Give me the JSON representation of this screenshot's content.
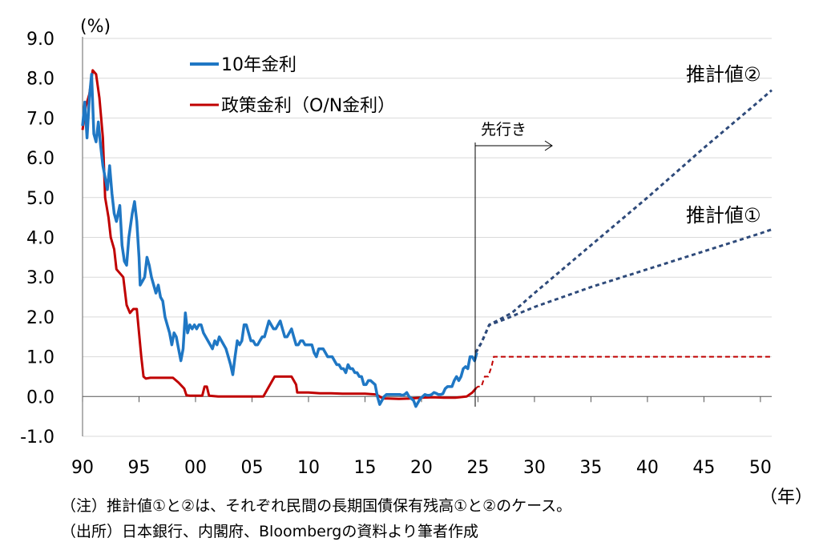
{
  "chart_data": {
    "type": "line",
    "unit_label": "(%)",
    "year_label": "（年）",
    "ylim": [
      -1.0,
      9.0
    ],
    "xlim": [
      1990,
      2051
    ],
    "y_ticks": [
      "9.0",
      "8.0",
      "7.0",
      "6.0",
      "5.0",
      "4.0",
      "3.0",
      "2.0",
      "1.0",
      "0.0",
      "-1.0"
    ],
    "x_ticks": [
      "90",
      "95",
      "00",
      "05",
      "10",
      "15",
      "20",
      "25",
      "30",
      "35",
      "40",
      "45",
      "50"
    ],
    "grid": "horizontal",
    "legend_position": "top-left",
    "colors": {
      "jgb10": "#1f77c4",
      "policy": "#c00000",
      "est": "#2e4a7a"
    },
    "series": [
      {
        "name": "10年金利",
        "key": "jgb10",
        "points": [
          [
            1990.0,
            6.8
          ],
          [
            1990.2,
            7.4
          ],
          [
            1990.4,
            6.5
          ],
          [
            1990.6,
            7.5
          ],
          [
            1990.8,
            8.1
          ],
          [
            1991.0,
            6.6
          ],
          [
            1991.2,
            6.4
          ],
          [
            1991.4,
            6.9
          ],
          [
            1991.6,
            6.3
          ],
          [
            1991.8,
            5.8
          ],
          [
            1992.0,
            5.5
          ],
          [
            1992.2,
            5.2
          ],
          [
            1992.4,
            5.8
          ],
          [
            1992.6,
            5.1
          ],
          [
            1992.8,
            4.6
          ],
          [
            1993.0,
            4.4
          ],
          [
            1993.3,
            4.8
          ],
          [
            1993.5,
            3.8
          ],
          [
            1993.7,
            3.4
          ],
          [
            1993.9,
            3.3
          ],
          [
            1994.1,
            4.0
          ],
          [
            1994.4,
            4.6
          ],
          [
            1994.6,
            4.9
          ],
          [
            1994.8,
            4.4
          ],
          [
            1995.0,
            3.5
          ],
          [
            1995.1,
            2.8
          ],
          [
            1995.3,
            2.9
          ],
          [
            1995.5,
            3.0
          ],
          [
            1995.7,
            3.5
          ],
          [
            1995.9,
            3.3
          ],
          [
            1996.1,
            3.0
          ],
          [
            1996.3,
            2.8
          ],
          [
            1996.5,
            2.6
          ],
          [
            1996.7,
            2.8
          ],
          [
            1996.9,
            2.5
          ],
          [
            1997.1,
            2.4
          ],
          [
            1997.3,
            2.0
          ],
          [
            1997.5,
            1.8
          ],
          [
            1997.7,
            1.6
          ],
          [
            1997.9,
            1.3
          ],
          [
            1998.1,
            1.6
          ],
          [
            1998.3,
            1.5
          ],
          [
            1998.5,
            1.2
          ],
          [
            1998.7,
            0.9
          ],
          [
            1998.9,
            1.2
          ],
          [
            1999.1,
            2.1
          ],
          [
            1999.3,
            1.6
          ],
          [
            1999.5,
            1.8
          ],
          [
            1999.7,
            1.7
          ],
          [
            1999.9,
            1.8
          ],
          [
            2000.1,
            1.7
          ],
          [
            2000.3,
            1.8
          ],
          [
            2000.5,
            1.8
          ],
          [
            2000.7,
            1.6
          ],
          [
            2000.9,
            1.5
          ],
          [
            2001.1,
            1.4
          ],
          [
            2001.3,
            1.3
          ],
          [
            2001.5,
            1.2
          ],
          [
            2001.7,
            1.4
          ],
          [
            2001.9,
            1.3
          ],
          [
            2002.1,
            1.5
          ],
          [
            2002.3,
            1.4
          ],
          [
            2002.5,
            1.3
          ],
          [
            2002.7,
            1.2
          ],
          [
            2002.9,
            1.0
          ],
          [
            2003.1,
            0.8
          ],
          [
            2003.3,
            0.55
          ],
          [
            2003.5,
            1.0
          ],
          [
            2003.7,
            1.4
          ],
          [
            2003.9,
            1.3
          ],
          [
            2004.1,
            1.4
          ],
          [
            2004.3,
            1.8
          ],
          [
            2004.5,
            1.8
          ],
          [
            2004.7,
            1.6
          ],
          [
            2004.9,
            1.4
          ],
          [
            2005.1,
            1.4
          ],
          [
            2005.3,
            1.3
          ],
          [
            2005.5,
            1.3
          ],
          [
            2005.7,
            1.4
          ],
          [
            2005.9,
            1.5
          ],
          [
            2006.1,
            1.5
          ],
          [
            2006.3,
            1.7
          ],
          [
            2006.5,
            1.9
          ],
          [
            2006.7,
            1.8
          ],
          [
            2006.9,
            1.7
          ],
          [
            2007.1,
            1.7
          ],
          [
            2007.3,
            1.8
          ],
          [
            2007.5,
            1.9
          ],
          [
            2007.7,
            1.7
          ],
          [
            2007.9,
            1.5
          ],
          [
            2008.1,
            1.5
          ],
          [
            2008.3,
            1.6
          ],
          [
            2008.5,
            1.7
          ],
          [
            2008.7,
            1.5
          ],
          [
            2008.9,
            1.3
          ],
          [
            2009.1,
            1.3
          ],
          [
            2009.3,
            1.4
          ],
          [
            2009.5,
            1.4
          ],
          [
            2009.7,
            1.3
          ],
          [
            2009.9,
            1.3
          ],
          [
            2010.1,
            1.3
          ],
          [
            2010.3,
            1.3
          ],
          [
            2010.5,
            1.1
          ],
          [
            2010.7,
            1.0
          ],
          [
            2010.9,
            1.2
          ],
          [
            2011.1,
            1.2
          ],
          [
            2011.3,
            1.2
          ],
          [
            2011.5,
            1.1
          ],
          [
            2011.7,
            1.0
          ],
          [
            2011.9,
            1.0
          ],
          [
            2012.1,
            1.0
          ],
          [
            2012.3,
            0.9
          ],
          [
            2012.5,
            0.8
          ],
          [
            2012.7,
            0.8
          ],
          [
            2012.9,
            0.7
          ],
          [
            2013.1,
            0.7
          ],
          [
            2013.3,
            0.6
          ],
          [
            2013.5,
            0.8
          ],
          [
            2013.7,
            0.7
          ],
          [
            2013.9,
            0.7
          ],
          [
            2014.1,
            0.6
          ],
          [
            2014.3,
            0.6
          ],
          [
            2014.5,
            0.5
          ],
          [
            2014.7,
            0.5
          ],
          [
            2014.9,
            0.3
          ],
          [
            2015.1,
            0.3
          ],
          [
            2015.3,
            0.4
          ],
          [
            2015.5,
            0.4
          ],
          [
            2015.7,
            0.35
          ],
          [
            2015.9,
            0.3
          ],
          [
            2016.1,
            0.0
          ],
          [
            2016.3,
            -0.2
          ],
          [
            2016.5,
            -0.1
          ],
          [
            2016.7,
            0.0
          ],
          [
            2016.9,
            0.05
          ],
          [
            2017.1,
            0.05
          ],
          [
            2017.3,
            0.05
          ],
          [
            2017.5,
            0.05
          ],
          [
            2017.7,
            0.05
          ],
          [
            2017.9,
            0.05
          ],
          [
            2018.1,
            0.05
          ],
          [
            2018.3,
            0.03
          ],
          [
            2018.5,
            0.05
          ],
          [
            2018.7,
            0.1
          ],
          [
            2018.9,
            0.0
          ],
          [
            2019.1,
            -0.05
          ],
          [
            2019.3,
            -0.1
          ],
          [
            2019.5,
            -0.25
          ],
          [
            2019.7,
            -0.15
          ],
          [
            2019.9,
            -0.05
          ],
          [
            2020.1,
            0.0
          ],
          [
            2020.3,
            0.05
          ],
          [
            2020.5,
            0.03
          ],
          [
            2020.7,
            0.03
          ],
          [
            2020.9,
            0.05
          ],
          [
            2021.1,
            0.1
          ],
          [
            2021.3,
            0.08
          ],
          [
            2021.5,
            0.05
          ],
          [
            2021.7,
            0.05
          ],
          [
            2021.9,
            0.07
          ],
          [
            2022.1,
            0.2
          ],
          [
            2022.3,
            0.25
          ],
          [
            2022.5,
            0.25
          ],
          [
            2022.7,
            0.25
          ],
          [
            2022.9,
            0.4
          ],
          [
            2023.1,
            0.5
          ],
          [
            2023.3,
            0.4
          ],
          [
            2023.5,
            0.5
          ],
          [
            2023.7,
            0.7
          ],
          [
            2023.9,
            0.75
          ],
          [
            2024.1,
            0.7
          ],
          [
            2024.3,
            1.0
          ],
          [
            2024.5,
            1.0
          ],
          [
            2024.7,
            0.9
          ],
          [
            2024.9,
            1.1
          ]
        ]
      },
      {
        "name": "政策金利（O/N金利）",
        "key": "policy",
        "points": [
          [
            1990.0,
            6.7
          ],
          [
            1990.3,
            7.3
          ],
          [
            1990.6,
            7.6
          ],
          [
            1990.9,
            8.2
          ],
          [
            1991.2,
            8.1
          ],
          [
            1991.5,
            7.5
          ],
          [
            1991.8,
            6.5
          ],
          [
            1992.0,
            5.0
          ],
          [
            1992.3,
            4.5
          ],
          [
            1992.5,
            4.0
          ],
          [
            1992.8,
            3.7
          ],
          [
            1993.0,
            3.2
          ],
          [
            1993.3,
            3.1
          ],
          [
            1993.6,
            3.0
          ],
          [
            1993.9,
            2.3
          ],
          [
            1994.2,
            2.1
          ],
          [
            1994.5,
            2.2
          ],
          [
            1994.8,
            2.2
          ],
          [
            1995.0,
            1.6
          ],
          [
            1995.2,
            1.0
          ],
          [
            1995.4,
            0.5
          ],
          [
            1995.6,
            0.45
          ],
          [
            1996.0,
            0.47
          ],
          [
            1996.5,
            0.47
          ],
          [
            1997.0,
            0.47
          ],
          [
            1997.5,
            0.47
          ],
          [
            1998.0,
            0.47
          ],
          [
            1998.5,
            0.35
          ],
          [
            1999.0,
            0.2
          ],
          [
            1999.2,
            0.03
          ],
          [
            1999.5,
            0.02
          ],
          [
            2000.0,
            0.02
          ],
          [
            2000.6,
            0.02
          ],
          [
            2000.8,
            0.25
          ],
          [
            2001.0,
            0.25
          ],
          [
            2001.2,
            0.02
          ],
          [
            2002.0,
            0.001
          ],
          [
            2003.0,
            0.001
          ],
          [
            2004.0,
            0.001
          ],
          [
            2005.0,
            0.001
          ],
          [
            2006.0,
            0.001
          ],
          [
            2006.5,
            0.25
          ],
          [
            2007.0,
            0.5
          ],
          [
            2007.5,
            0.5
          ],
          [
            2008.0,
            0.5
          ],
          [
            2008.5,
            0.5
          ],
          [
            2008.9,
            0.3
          ],
          [
            2009.0,
            0.1
          ],
          [
            2010.0,
            0.1
          ],
          [
            2011.0,
            0.08
          ],
          [
            2012.0,
            0.08
          ],
          [
            2013.0,
            0.07
          ],
          [
            2014.0,
            0.07
          ],
          [
            2015.0,
            0.07
          ],
          [
            2016.0,
            0.05
          ],
          [
            2016.3,
            0.0
          ],
          [
            2016.6,
            -0.05
          ],
          [
            2017.0,
            -0.05
          ],
          [
            2018.0,
            -0.06
          ],
          [
            2019.0,
            -0.05
          ],
          [
            2020.0,
            -0.03
          ],
          [
            2021.0,
            -0.02
          ],
          [
            2022.0,
            -0.03
          ],
          [
            2023.0,
            -0.03
          ],
          [
            2024.0,
            0.0
          ],
          [
            2024.5,
            0.1
          ],
          [
            2024.8,
            0.2
          ]
        ]
      }
    ],
    "estimates": [
      {
        "label": "推計値①",
        "key": "est",
        "points": [
          [
            2024.8,
            1.1
          ],
          [
            2025.3,
            1.35
          ],
          [
            2026.0,
            1.8
          ],
          [
            2027.0,
            1.9
          ],
          [
            2030.0,
            2.25
          ],
          [
            2035.0,
            2.75
          ],
          [
            2040.0,
            3.2
          ],
          [
            2045.0,
            3.65
          ],
          [
            2050.0,
            4.1
          ],
          [
            2051.0,
            4.2
          ]
        ]
      },
      {
        "label": "推計値②",
        "key": "est",
        "points": [
          [
            2024.8,
            1.1
          ],
          [
            2025.3,
            1.35
          ],
          [
            2026.0,
            1.8
          ],
          [
            2028.0,
            2.1
          ],
          [
            2030.0,
            2.6
          ],
          [
            2035.0,
            3.8
          ],
          [
            2040.0,
            5.0
          ],
          [
            2045.0,
            6.25
          ],
          [
            2050.0,
            7.45
          ],
          [
            2051.0,
            7.7
          ]
        ]
      }
    ],
    "policy_projection": {
      "key": "policy",
      "points": [
        [
          2024.8,
          0.2
        ],
        [
          2025.0,
          0.25
        ],
        [
          2025.3,
          0.25
        ],
        [
          2025.6,
          0.5
        ],
        [
          2025.9,
          0.5
        ],
        [
          2026.2,
          0.75
        ],
        [
          2026.4,
          1.0
        ],
        [
          2051.0,
          1.0
        ]
      ]
    },
    "forecast_marker": {
      "x": 2025.0,
      "label": "先行き"
    },
    "legend": [
      {
        "label": "10年金利",
        "key": "jgb10"
      },
      {
        "label": "政策金利（O/N金利）",
        "key": "policy"
      }
    ],
    "annotations": {
      "est2": "推計値②",
      "est1": "推計値①"
    }
  },
  "notes": {
    "note1": "（注）推計値①と②は、それぞれ民間の長期国債保有残高①と②のケース。",
    "note2": "（出所）日本銀行、内閣府、Bloombergの資料より筆者作成"
  }
}
